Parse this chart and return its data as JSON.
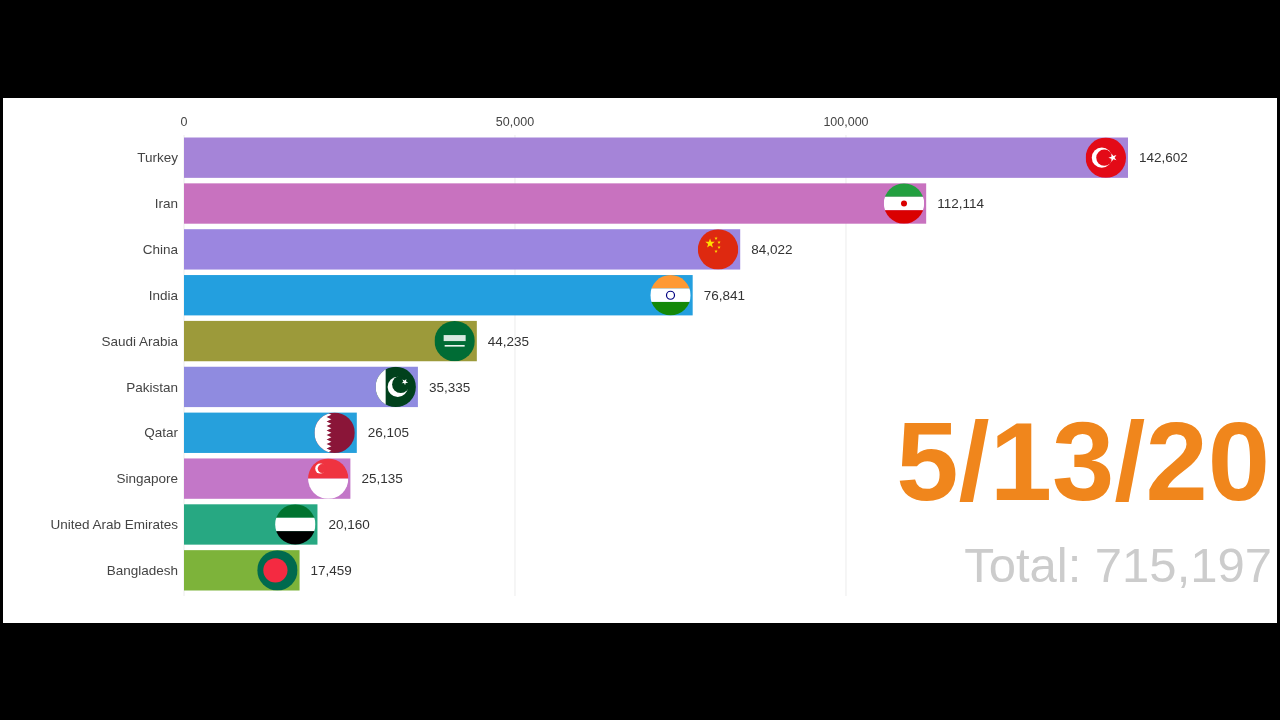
{
  "chart_data": {
    "type": "bar",
    "orientation": "horizontal",
    "categories": [
      "Turkey",
      "Iran",
      "China",
      "India",
      "Saudi Arabia",
      "Pakistan",
      "Qatar",
      "Singapore",
      "United Arab Emirates",
      "Bangladesh"
    ],
    "values": [
      142602,
      112114,
      84022,
      76841,
      44235,
      35335,
      26105,
      25135,
      20160,
      17459
    ],
    "colors": [
      "#a584d8",
      "#c872bf",
      "#9b86e0",
      "#239fdf",
      "#9c9a3a",
      "#8f8be0",
      "#26a0dc",
      "#c377c8",
      "#27a882",
      "#7db33a"
    ],
    "value_labels": [
      "142,602",
      "112,114",
      "84,022",
      "76,841",
      "44,235",
      "35,335",
      "26,105",
      "25,135",
      "20,160",
      "17,459"
    ],
    "xlim": [
      0,
      142602
    ],
    "xticks": [
      0,
      {
        "value": 50000,
        "label": "50,000"
      },
      {
        "value": 100000,
        "label": "100,000"
      }
    ],
    "grid": "x",
    "annotations": [
      "5/13/20",
      "Total: 715,197"
    ]
  }
}
